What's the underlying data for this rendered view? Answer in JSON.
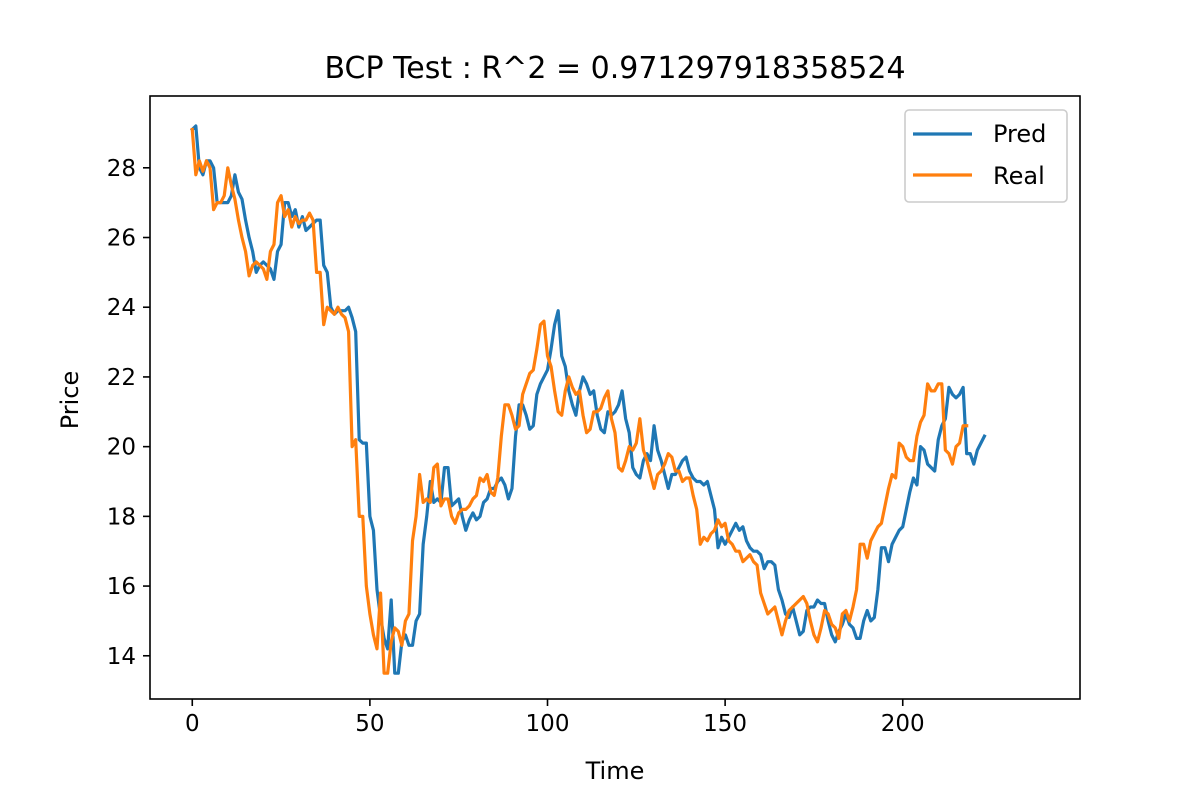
{
  "chart_data": {
    "type": "line",
    "title": "BCP Test : R^2 = 0.971297918358524",
    "xlabel": "Time",
    "ylabel": "Price",
    "xlim": [
      -11.9,
      249.9
    ],
    "ylim": [
      12.76,
      30.06
    ],
    "xticks": [
      0,
      50,
      100,
      150,
      200
    ],
    "yticks": [
      14,
      16,
      18,
      20,
      22,
      24,
      26,
      28
    ],
    "grid": false,
    "legend_position": "top-right",
    "series": [
      {
        "name": "Pred",
        "color": "#1f77b4",
        "x_start": 0,
        "values": [
          29.1,
          29.2,
          28.0,
          27.8,
          28.2,
          28.2,
          28.0,
          27.0,
          27.0,
          27.0,
          27.0,
          27.2,
          27.8,
          27.3,
          27.1,
          26.5,
          26.0,
          25.6,
          25.0,
          25.2,
          25.3,
          25.2,
          25.1,
          24.8,
          25.6,
          25.8,
          27.0,
          27.0,
          26.6,
          26.8,
          26.3,
          26.6,
          26.2,
          26.3,
          26.4,
          26.5,
          26.5,
          25.2,
          25.0,
          24.0,
          23.8,
          23.9,
          23.9,
          23.9,
          24.0,
          23.7,
          23.3,
          20.2,
          20.1,
          20.1,
          18.0,
          17.6,
          15.9,
          15.1,
          14.5,
          14.2,
          15.6,
          13.5,
          13.5,
          14.4,
          14.6,
          14.3,
          14.3,
          15.0,
          15.2,
          17.2,
          18.0,
          19.0,
          18.4,
          18.5,
          18.4,
          19.4,
          19.4,
          18.3,
          18.4,
          18.5,
          18.0,
          17.6,
          17.9,
          18.1,
          17.9,
          18.0,
          18.4,
          18.5,
          18.8,
          18.8,
          19.0,
          19.1,
          18.9,
          18.5,
          18.8,
          20.3,
          21.2,
          21.2,
          20.9,
          20.5,
          20.6,
          21.5,
          21.8,
          22.0,
          22.2,
          22.8,
          23.5,
          23.9,
          22.6,
          22.3,
          21.6,
          21.2,
          20.9,
          21.6,
          22.0,
          21.8,
          21.5,
          21.6,
          20.9,
          20.5,
          20.4,
          21.0,
          20.9,
          21.0,
          21.2,
          21.6,
          20.8,
          20.4,
          19.4,
          19.2,
          19.1,
          19.6,
          19.8,
          19.6,
          20.6,
          19.9,
          19.6,
          19.2,
          18.8,
          19.2,
          19.2,
          19.4,
          19.6,
          19.7,
          19.3,
          19.1,
          19.0,
          19.0,
          18.9,
          19.0,
          18.6,
          18.2,
          17.1,
          17.4,
          17.2,
          17.4,
          17.6,
          17.8,
          17.6,
          17.7,
          17.3,
          17.1,
          17.0,
          17.0,
          16.9,
          16.5,
          16.7,
          16.7,
          16.6,
          15.9,
          15.6,
          15.2,
          15.1,
          15.4,
          15.0,
          14.6,
          14.7,
          15.3,
          15.4,
          15.4,
          15.6,
          15.5,
          15.5,
          15.0,
          14.6,
          14.4,
          14.7,
          14.9,
          15.2,
          14.9,
          14.8,
          14.5,
          14.5,
          15.0,
          15.3,
          15.0,
          15.1,
          15.9,
          17.1,
          17.1,
          16.7,
          17.2,
          17.4,
          17.6,
          17.7,
          18.2,
          18.7,
          19.1,
          18.9,
          20.0,
          19.9,
          19.5,
          19.4,
          19.3,
          20.2,
          20.6,
          20.8,
          21.7,
          21.5,
          21.4,
          21.5,
          21.7,
          19.8,
          19.8,
          19.5,
          19.9,
          20.1,
          20.3
        ]
      },
      {
        "name": "Real",
        "color": "#ff7f0e",
        "x_start": 0,
        "values": [
          29.1,
          27.8,
          28.2,
          27.9,
          28.2,
          28.0,
          26.8,
          27.0,
          27.0,
          27.2,
          28.0,
          27.5,
          27.1,
          26.5,
          26.0,
          25.6,
          24.9,
          25.2,
          25.3,
          25.2,
          25.1,
          24.8,
          25.6,
          25.8,
          27.0,
          27.2,
          26.6,
          26.8,
          26.3,
          26.6,
          26.4,
          26.5,
          26.5,
          26.7,
          26.5,
          25.0,
          25.0,
          23.5,
          24.0,
          23.9,
          23.8,
          24.0,
          23.8,
          23.7,
          23.3,
          20.0,
          20.2,
          18.0,
          18.0,
          16.0,
          15.2,
          14.6,
          14.2,
          15.8,
          13.5,
          13.5,
          14.4,
          14.8,
          14.7,
          14.3,
          15.0,
          15.2,
          17.3,
          18.0,
          19.2,
          18.4,
          18.5,
          18.4,
          19.4,
          19.5,
          18.3,
          18.5,
          18.5,
          18.0,
          17.8,
          18.1,
          18.2,
          18.2,
          18.3,
          18.5,
          18.6,
          19.1,
          19.0,
          19.2,
          18.7,
          18.6,
          19.1,
          20.3,
          21.2,
          21.2,
          20.9,
          20.5,
          20.6,
          21.5,
          21.8,
          22.1,
          22.2,
          22.8,
          23.5,
          23.6,
          22.6,
          22.3,
          21.6,
          21.0,
          20.9,
          21.6,
          22.0,
          21.7,
          21.5,
          21.6,
          20.9,
          20.4,
          20.5,
          21.0,
          21.0,
          21.1,
          21.4,
          21.6,
          20.8,
          20.4,
          19.4,
          19.3,
          19.6,
          20.0,
          19.9,
          20.1,
          20.8,
          19.9,
          19.6,
          19.2,
          18.8,
          19.2,
          19.3,
          19.5,
          19.8,
          19.7,
          19.3,
          19.3,
          19.0,
          19.1,
          19.1,
          18.6,
          18.2,
          17.2,
          17.4,
          17.3,
          17.5,
          17.6,
          17.9,
          17.7,
          17.8,
          17.3,
          17.2,
          17.0,
          17.0,
          16.7,
          16.8,
          16.9,
          16.7,
          16.6,
          15.8,
          15.5,
          15.2,
          15.3,
          15.4,
          15.0,
          14.6,
          15.0,
          15.3,
          15.4,
          15.5,
          15.6,
          15.7,
          15.5,
          15.0,
          14.6,
          14.4,
          14.8,
          15.3,
          15.2,
          14.9,
          14.8,
          14.5,
          15.2,
          15.3,
          15.0,
          15.4,
          15.9,
          17.2,
          17.2,
          16.8,
          17.3,
          17.5,
          17.7,
          17.8,
          18.3,
          18.8,
          19.2,
          19.1,
          20.1,
          20.0,
          19.7,
          19.6,
          19.6,
          20.3,
          20.7,
          20.9,
          21.8,
          21.6,
          21.6,
          21.8,
          21.8,
          19.9,
          19.8,
          19.5,
          20.0,
          20.1,
          20.6,
          20.6
        ]
      }
    ]
  }
}
